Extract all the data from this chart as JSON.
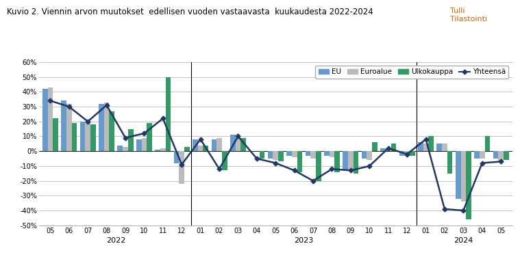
{
  "title": "Kuvio 2. Viennin arvon muutokset  edellisen vuoden vastaavasta  kuukaudesta 2022-2024",
  "subtitle": "Tulli\nTilastointi",
  "months": [
    "05",
    "06",
    "07",
    "08",
    "09",
    "10",
    "11",
    "12",
    "01",
    "02",
    "03",
    "04",
    "05",
    "06",
    "07",
    "08",
    "09",
    "10",
    "11",
    "12",
    "01",
    "02",
    "03",
    "04",
    "05"
  ],
  "separators_idx": [
    7.5,
    19.5
  ],
  "EU": [
    42,
    34,
    20,
    32,
    4,
    8,
    1,
    -8,
    8,
    8,
    11,
    0,
    -5,
    -3,
    -3,
    -3,
    -13,
    -5,
    2,
    -3,
    6,
    5,
    -32,
    -5,
    -5
  ],
  "Euroalue": [
    43,
    32,
    20,
    33,
    3,
    9,
    2,
    -22,
    4,
    9,
    9,
    0,
    -6,
    -4,
    -5,
    -4,
    -13,
    -6,
    2,
    -3,
    5,
    5,
    -34,
    -5,
    -7
  ],
  "Ulkokauppa": [
    22,
    19,
    18,
    27,
    15,
    19,
    50,
    3,
    4,
    -13,
    9,
    -5,
    -7,
    -14,
    -20,
    -14,
    -15,
    6,
    5,
    -3,
    10,
    -15,
    -46,
    10,
    -6
  ],
  "Yhteensa": [
    34,
    30,
    20,
    31,
    9,
    12,
    22,
    -9,
    8,
    -12,
    10,
    -5,
    -8,
    -13,
    -20,
    -12,
    -13,
    -10,
    2,
    -2,
    8,
    -39,
    -40,
    -8,
    -7
  ],
  "ylim": [
    -50,
    60
  ],
  "yticks": [
    -50,
    -40,
    -30,
    -20,
    -10,
    0,
    10,
    20,
    30,
    40,
    50,
    60
  ],
  "EU_color": "#6699CC",
  "Euroalue_color": "#BBBBBB",
  "Ulkokauppa_color": "#339966",
  "Yhteensa_color": "#1F3864",
  "background_color": "#FFFFFF",
  "legend_labels": [
    "EU",
    "Euroalue",
    "Ulkokauppa",
    "Yhteensä"
  ],
  "year_centers": [
    3.5,
    13.5,
    22.0
  ],
  "year_names": [
    "2022",
    "2023",
    "2024"
  ]
}
